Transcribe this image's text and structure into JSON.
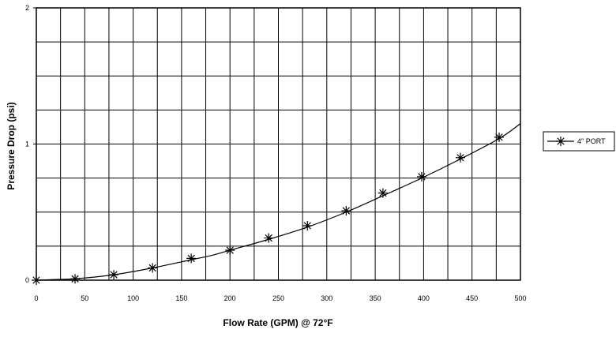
{
  "chart_data": {
    "type": "line",
    "title": "",
    "xlabel": "Flow Rate (GPM) @ 72°F",
    "ylabel": "Pressure Drop (psi)",
    "xlim": [
      0,
      500
    ],
    "ylim": [
      0,
      2
    ],
    "x_ticks": [
      0,
      50,
      100,
      150,
      200,
      250,
      300,
      350,
      400,
      450,
      500
    ],
    "y_ticks": [
      0,
      1,
      2
    ],
    "x_tick_labels": [
      "0",
      "50",
      "100",
      "150",
      "200",
      "250",
      "300",
      "350",
      "400",
      "450",
      "500"
    ],
    "y_tick_labels": [
      "0",
      "1",
      "2"
    ],
    "grid": true,
    "legend_position": "right",
    "series": [
      {
        "name": "4\" PORT",
        "marker": "asterisk",
        "color": "#000000",
        "x": [
          0,
          40,
          80,
          120,
          160,
          200,
          240,
          280,
          320,
          358,
          398,
          438,
          478
        ],
        "y": [
          0.0,
          0.01,
          0.04,
          0.09,
          0.16,
          0.22,
          0.31,
          0.4,
          0.51,
          0.64,
          0.76,
          0.9,
          1.05
        ]
      }
    ],
    "curve": {
      "x": [
        0,
        20,
        40,
        80,
        120,
        160,
        180,
        200,
        240,
        280,
        320,
        358,
        398,
        438,
        478,
        500
      ],
      "y": [
        0.0,
        0.005,
        0.01,
        0.04,
        0.09,
        0.15,
        0.18,
        0.22,
        0.3,
        0.39,
        0.5,
        0.62,
        0.75,
        0.89,
        1.04,
        1.15
      ]
    }
  }
}
